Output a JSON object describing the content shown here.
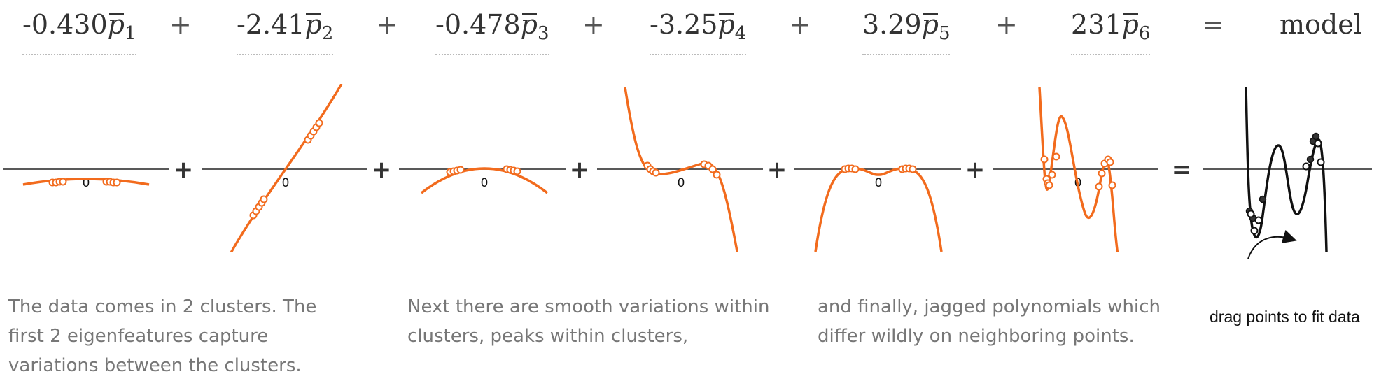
{
  "equation": {
    "terms": [
      {
        "coef": "-0.430",
        "sub": "1"
      },
      {
        "coef": "-2.41",
        "sub": "2"
      },
      {
        "coef": "-0.478",
        "sub": "3"
      },
      {
        "coef": "-3.25",
        "sub": "4"
      },
      {
        "coef": "3.29",
        "sub": "5"
      },
      {
        "coef": "231",
        "sub": "6"
      }
    ],
    "plus": "+",
    "equals": "=",
    "result": "model"
  },
  "plots": {
    "axis_zero_label": "0",
    "plus_symbol": "+",
    "equals_symbol": "=",
    "component_color": "#f26b1d",
    "model_color": "#111111"
  },
  "captions": {
    "clusters": "The data comes in 2 clusters. The first 2 eigenfeatures capture variations between the clusters.",
    "smooth": "Next there are smooth variations within clusters, peaks within clusters,",
    "jagged": "and finally, jagged polynomials which differ wildly on neighboring points.",
    "drag_hint": "drag points to fit data"
  }
}
